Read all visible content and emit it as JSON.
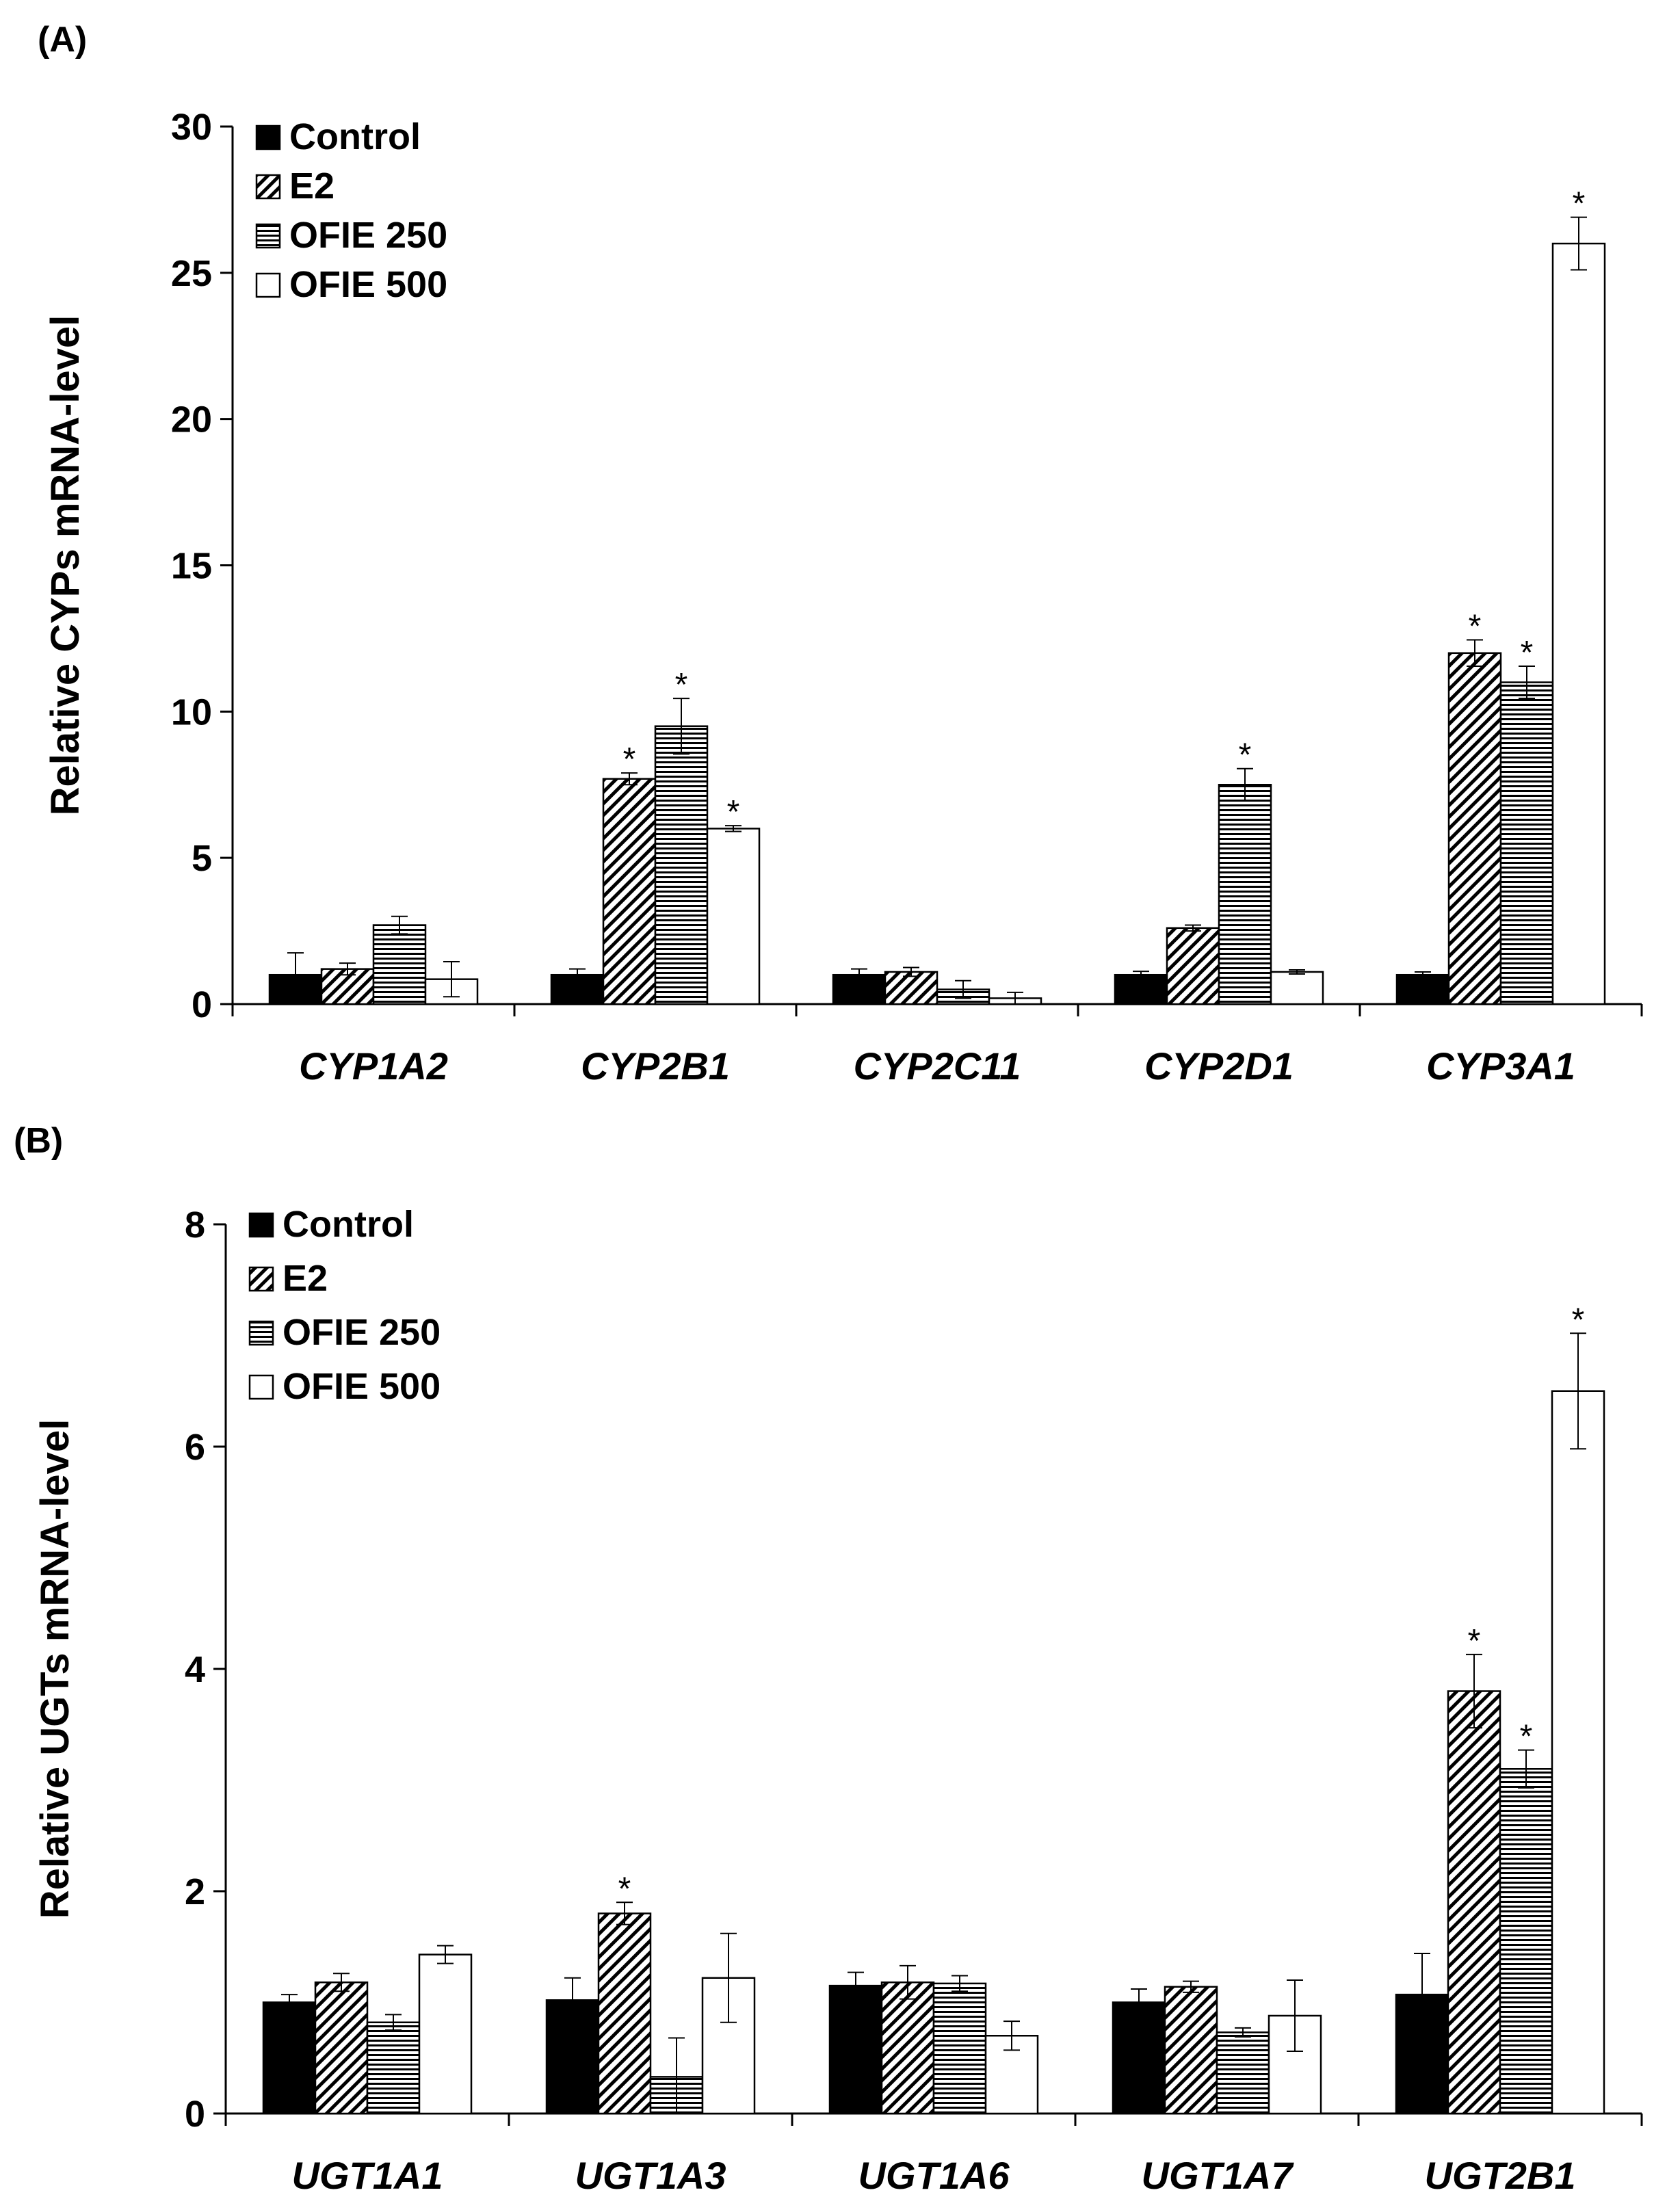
{
  "legend_series_order": [
    "Control",
    "E2",
    "OFIE 250",
    "OFIE 500"
  ],
  "chart_data": [
    {
      "panel": "(A)",
      "type": "bar",
      "ylabel": "Relative CYPs mRNA-level",
      "xlabel": "",
      "ylim": [
        0,
        30
      ],
      "yticks": [
        0,
        5,
        10,
        15,
        20,
        25,
        30
      ],
      "categories": [
        "CYP1A2",
        "CYP2B1",
        "CYP2C11",
        "CYP2D1",
        "CYP3A1"
      ],
      "series": [
        {
          "name": "Control",
          "pattern": "solid-black",
          "values": [
            1.0,
            1.0,
            1.0,
            1.0,
            1.0
          ],
          "errors": [
            0.75,
            0.2,
            0.2,
            0.12,
            0.1
          ],
          "significant": [
            false,
            false,
            false,
            false,
            false
          ]
        },
        {
          "name": "E2",
          "pattern": "diagonal-hatch",
          "values": [
            1.2,
            7.7,
            1.1,
            2.6,
            12.0
          ],
          "errors": [
            0.2,
            0.2,
            0.15,
            0.1,
            0.45
          ],
          "significant": [
            false,
            true,
            false,
            false,
            true
          ]
        },
        {
          "name": "OFIE 250",
          "pattern": "horizontal-lines",
          "values": [
            2.7,
            9.5,
            0.5,
            7.5,
            11.0
          ],
          "errors": [
            0.3,
            0.95,
            0.3,
            0.55,
            0.55
          ],
          "significant": [
            false,
            true,
            false,
            true,
            true
          ]
        },
        {
          "name": "OFIE 500",
          "pattern": "white",
          "values": [
            0.85,
            6.0,
            0.2,
            1.1,
            26.0
          ],
          "errors": [
            0.6,
            0.1,
            0.2,
            0.07,
            0.9
          ],
          "significant": [
            false,
            true,
            false,
            false,
            true
          ]
        }
      ]
    },
    {
      "panel": "(B)",
      "type": "bar",
      "ylabel": "Relative UGTs mRNA-level",
      "xlabel": "",
      "ylim": [
        0,
        8
      ],
      "yticks": [
        0,
        2,
        4,
        6,
        8
      ],
      "categories": [
        "UGT1A1",
        "UGT1A3",
        "UGT1A6",
        "UGT1A7",
        "UGT2B1"
      ],
      "series": [
        {
          "name": "Control",
          "pattern": "solid-black",
          "values": [
            1.0,
            1.02,
            1.15,
            1.0,
            1.07
          ],
          "errors": [
            0.07,
            0.2,
            0.12,
            0.12,
            0.37
          ],
          "significant": [
            false,
            false,
            false,
            false,
            false
          ]
        },
        {
          "name": "E2",
          "pattern": "diagonal-hatch",
          "values": [
            1.18,
            1.8,
            1.18,
            1.14,
            3.8
          ],
          "errors": [
            0.08,
            0.1,
            0.15,
            0.05,
            0.33
          ],
          "significant": [
            false,
            true,
            false,
            false,
            true
          ]
        },
        {
          "name": "OFIE 250",
          "pattern": "horizontal-lines",
          "values": [
            0.82,
            0.33,
            1.17,
            0.73,
            3.1
          ],
          "errors": [
            0.07,
            0.35,
            0.07,
            0.04,
            0.17
          ],
          "significant": [
            false,
            false,
            false,
            false,
            true
          ]
        },
        {
          "name": "OFIE 500",
          "pattern": "white",
          "values": [
            1.43,
            1.22,
            0.7,
            0.88,
            6.5
          ],
          "errors": [
            0.08,
            0.4,
            0.13,
            0.32,
            0.52
          ],
          "significant": [
            false,
            false,
            false,
            false,
            true
          ]
        }
      ]
    }
  ]
}
